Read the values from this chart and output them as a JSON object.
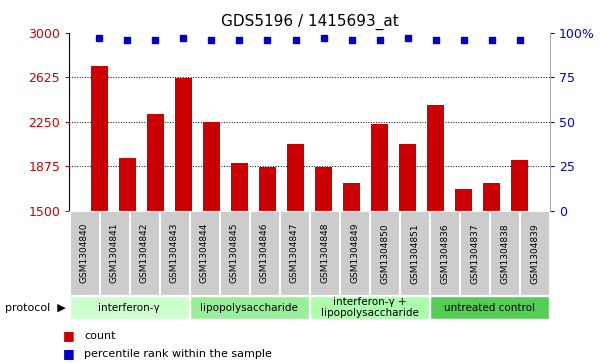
{
  "title": "GDS5196 / 1415693_at",
  "samples": [
    "GSM1304840",
    "GSM1304841",
    "GSM1304842",
    "GSM1304843",
    "GSM1304844",
    "GSM1304845",
    "GSM1304846",
    "GSM1304847",
    "GSM1304848",
    "GSM1304849",
    "GSM1304850",
    "GSM1304851",
    "GSM1304836",
    "GSM1304837",
    "GSM1304838",
    "GSM1304839"
  ],
  "counts": [
    2720,
    1940,
    2310,
    2620,
    2250,
    1900,
    1870,
    2060,
    1870,
    1730,
    2230,
    2060,
    2390,
    1680,
    1730,
    1930
  ],
  "percentile_ranks": [
    97,
    96,
    96,
    97,
    96,
    96,
    96,
    96,
    97,
    96,
    96,
    97,
    96,
    96,
    96,
    96
  ],
  "protocols": [
    {
      "label": "interferon-γ",
      "start": 0,
      "end": 4,
      "color": "#ccffcc"
    },
    {
      "label": "lipopolysaccharide",
      "start": 4,
      "end": 8,
      "color": "#99ee99"
    },
    {
      "label": "interferon-γ +\nlipopolysaccharide",
      "start": 8,
      "end": 12,
      "color": "#aaffaa"
    },
    {
      "label": "untreated control",
      "start": 12,
      "end": 16,
      "color": "#55cc55"
    }
  ],
  "bar_color": "#cc0000",
  "dot_color": "#0000cc",
  "ylim_left": [
    1500,
    3000
  ],
  "ylim_right": [
    0,
    100
  ],
  "yticks_left": [
    1500,
    1875,
    2250,
    2625,
    3000
  ],
  "yticks_right": [
    0,
    25,
    50,
    75,
    100
  ],
  "grid_values": [
    1875,
    2250,
    2625
  ],
  "background_color": "#ffffff",
  "tick_bg_color": "#cccccc",
  "label_count": "count",
  "label_percentile": "percentile rank within the sample"
}
